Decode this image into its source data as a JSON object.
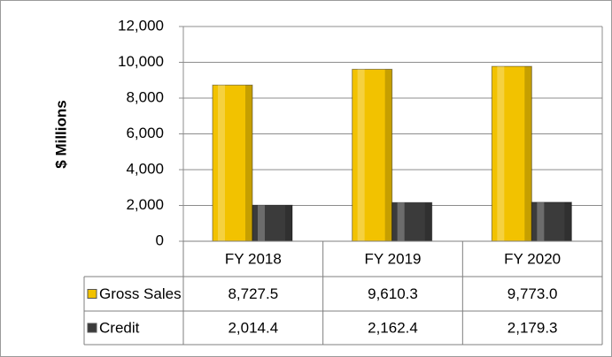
{
  "chart_data": {
    "type": "bar",
    "y_axis_label": "$ Millions",
    "categories": [
      "FY 2018",
      "FY 2019",
      "FY 2020"
    ],
    "series": [
      {
        "name": "Gross Sales",
        "color": "#f2c200",
        "values": [
          8727.5,
          9610.3,
          9773.0
        ],
        "value_labels": [
          "8,727.5",
          "9,610.3",
          "9,773.0"
        ]
      },
      {
        "name": "Credit",
        "color": "#3b3b3b",
        "values": [
          2014.4,
          2162.4,
          2179.3
        ],
        "value_labels": [
          "2,014.4",
          "2,162.4",
          "2,179.3"
        ]
      }
    ],
    "ylim": [
      0,
      12000
    ],
    "yticks": [
      0,
      {
        "value": 2000,
        "label": "2,000"
      },
      {
        "value": 4000,
        "label": "4,000"
      },
      {
        "value": 6000,
        "label": "6,000"
      },
      {
        "value": 8000,
        "label": "8,000"
      },
      {
        "value": 10000,
        "label": "10,000"
      },
      {
        "value": 12000,
        "label": "12,000"
      }
    ],
    "grid": true
  }
}
